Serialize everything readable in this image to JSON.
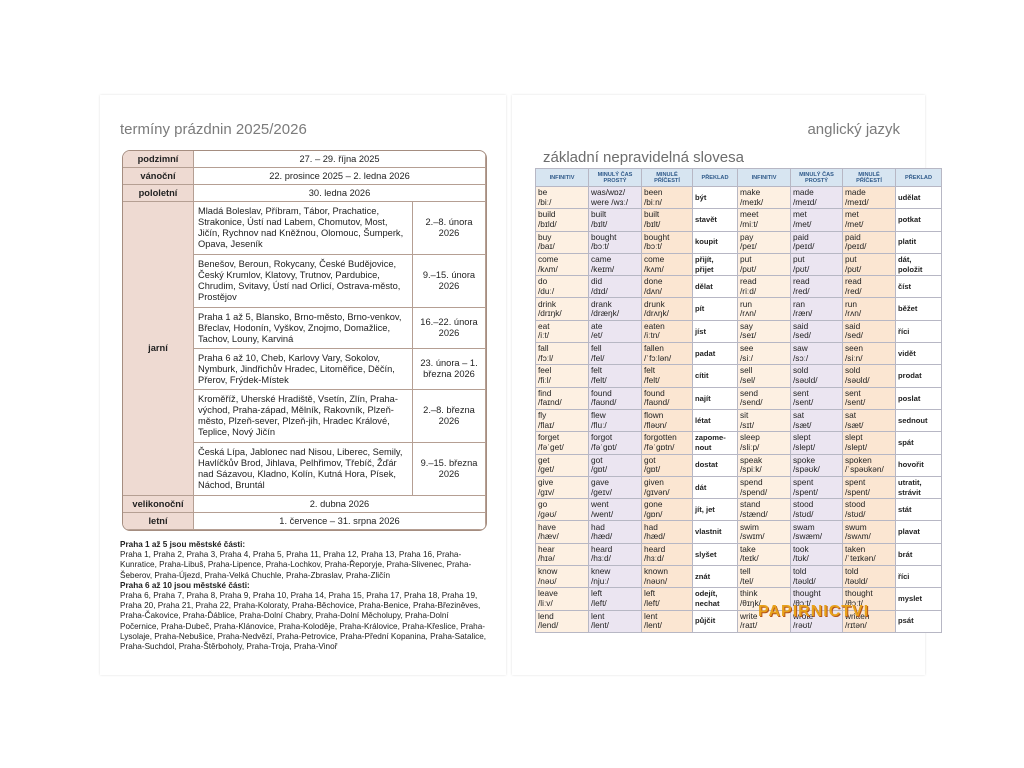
{
  "left_page": {
    "title": "termíny prázdnin 2025/2026",
    "table": {
      "rows": [
        {
          "season": "podzimní",
          "date": "27. – 29. října 2025"
        },
        {
          "season": "vánoční",
          "date": "22. prosince 2025 – 2. ledna 2026"
        },
        {
          "season": "pololetní",
          "date": "30. ledna 2026"
        },
        {
          "season": "jarní",
          "subrows": [
            {
              "regions": "Mladá Boleslav, Příbram, Tábor, Prachatice, Strakonice, Ústí nad Labem, Chomutov, Most, Jičín, Rychnov nad Kněžnou, Olomouc, Šumperk, Opava, Jeseník",
              "dates": "2.–8. února 2026"
            },
            {
              "regions": "Benešov, Beroun, Rokycany, České Budějovice, Český Krumlov, Klatovy, Trutnov, Pardubice, Chrudim, Svitavy, Ústí nad Orlicí, Ostrava-město, Prostějov",
              "dates": "9.–15. února 2026"
            },
            {
              "regions": "Praha 1 až 5, Blansko, Brno-město, Brno-venkov, Břeclav, Hodonín, Vyškov, Znojmo, Domažlice, Tachov, Louny, Karviná",
              "dates": "16.–22. února 2026"
            },
            {
              "regions": "Praha 6 až 10, Cheb, Karlovy Vary, Sokolov, Nymburk, Jindřichův Hradec, Litoměřice, Děčín, Přerov, Frýdek-Místek",
              "dates": "23. února – 1. března 2026"
            },
            {
              "regions": "Kroměříž, Uherské Hradiště, Vsetín, Zlín, Praha-východ, Praha-západ, Mělník, Rakovník, Plzeň-město, Plzeň-sever, Plzeň-jih, Hradec Králové, Teplice, Nový Jičín",
              "dates": "2.–8. března 2026"
            },
            {
              "regions": "Česká Lípa, Jablonec nad Nisou, Liberec, Semily, Havlíčkův Brod, Jihlava, Pelhřimov, Třebíč, Žďár nad Sázavou, Kladno, Kolín, Kutná Hora, Písek, Náchod, Bruntál",
              "dates": "9.–15. března 2026"
            }
          ]
        },
        {
          "season": "velikonoční",
          "date": "2. dubna 2026"
        },
        {
          "season": "letní",
          "date": "1. července – 31. srpna 2026"
        }
      ]
    },
    "notes": [
      {
        "heading": "Praha 1 až 5 jsou městské části:",
        "text": "Praha 1, Praha 2, Praha 3, Praha 4, Praha 5, Praha 11, Praha 12, Praha 13, Praha 16, Praha-Kunratice, Praha-Libuš, Praha-Lipence, Praha-Lochkov, Praha-Řeporyje, Praha-Slivenec, Praha-Šeberov, Praha-Újezd, Praha-Velká Chuchle, Praha-Zbraslav, Praha-Zličín"
      },
      {
        "heading": "Praha 6 až 10 jsou městské části:",
        "text": "Praha 6, Praha 7, Praha 8, Praha 9, Praha 10, Praha 14, Praha 15, Praha 17, Praha 18, Praha 19, Praha 20, Praha 21, Praha 22, Praha-Koloraty, Praha-Běchovice, Praha-Benice, Praha-Březiněves, Praha-Čakovice, Praha-Ďáblice, Praha-Dolní Chabry, Praha-Dolní Měcholupy, Praha-Dolní Počernice, Praha-Dubeč, Praha-Klánovice, Praha-Koloděje, Praha-Královice, Praha-Křeslice, Praha-Lysolaje, Praha-Nebušice, Praha-Nedvězí, Praha-Petrovice, Praha-Přední Kopanina, Praha-Satalice, Praha-Suchdol, Praha-Štěrboholy, Praha-Troja, Praha-Vinoř"
      }
    ]
  },
  "right_page": {
    "title": "anglický jazyk",
    "subtitle": "základní nepravidelná slovesa",
    "watermark": "PAPIRNICTVI",
    "table": {
      "headers": [
        "INFINITIV",
        "MINULÝ ČAS PROSTÝ",
        "MINULÉ PŘÍČESTÍ",
        "PŘEKLAD"
      ],
      "rows": [
        [
          [
            "be",
            "/biː/"
          ],
          [
            "was/wɒz/",
            "were /wɜː/"
          ],
          [
            "been",
            "/biːn/"
          ],
          [
            "být"
          ],
          [
            "make",
            "/meɪk/"
          ],
          [
            "made",
            "/meɪd/"
          ],
          [
            "made",
            "/meɪd/"
          ],
          [
            "udělat"
          ]
        ],
        [
          [
            "build",
            "/bɪld/"
          ],
          [
            "built",
            "/bɪlt/"
          ],
          [
            "built",
            "/bɪlt/"
          ],
          [
            "stavět"
          ],
          [
            "meet",
            "/miːt/"
          ],
          [
            "met",
            "/met/"
          ],
          [
            "met",
            "/met/"
          ],
          [
            "potkat"
          ]
        ],
        [
          [
            "buy",
            "/baɪ/"
          ],
          [
            "bought",
            "/bɔːt/"
          ],
          [
            "bought",
            "/bɔːt/"
          ],
          [
            "koupit"
          ],
          [
            "pay",
            "/peɪ/"
          ],
          [
            "paid",
            "/peɪd/"
          ],
          [
            "paid",
            "/peɪd/"
          ],
          [
            "platit"
          ]
        ],
        [
          [
            "come",
            "/kʌm/"
          ],
          [
            "came",
            "/keɪm/"
          ],
          [
            "come",
            "/kʌm/"
          ],
          [
            "přijít,",
            "přijet"
          ],
          [
            "put",
            "/pʊt/"
          ],
          [
            "put",
            "/pʊt/"
          ],
          [
            "put",
            "/pʊt/"
          ],
          [
            "dát,",
            "položit"
          ]
        ],
        [
          [
            "do",
            "/duː/"
          ],
          [
            "did",
            "/dɪd/"
          ],
          [
            "done",
            "/dʌn/"
          ],
          [
            "dělat"
          ],
          [
            "read",
            "/riːd/"
          ],
          [
            "read",
            "/red/"
          ],
          [
            "read",
            "/red/"
          ],
          [
            "číst"
          ]
        ],
        [
          [
            "drink",
            "/drɪŋk/"
          ],
          [
            "drank",
            "/dræŋk/"
          ],
          [
            "drunk",
            "/drʌŋk/"
          ],
          [
            "pít"
          ],
          [
            "run",
            "/rʌn/"
          ],
          [
            "ran",
            "/ræn/"
          ],
          [
            "run",
            "/rʌn/"
          ],
          [
            "běžet"
          ]
        ],
        [
          [
            "eat",
            "/iːt/"
          ],
          [
            "ate",
            "/et/"
          ],
          [
            "eaten",
            "/iːtn/"
          ],
          [
            "jíst"
          ],
          [
            "say",
            "/seɪ/"
          ],
          [
            "said",
            "/sed/"
          ],
          [
            "said",
            "/sed/"
          ],
          [
            "říci"
          ]
        ],
        [
          [
            "fall",
            "/fɔːl/"
          ],
          [
            "fell",
            "/fel/"
          ],
          [
            "fallen",
            "/ˈfɔːlən/"
          ],
          [
            "padat"
          ],
          [
            "see",
            "/siː/"
          ],
          [
            "saw",
            "/sɔː/"
          ],
          [
            "seen",
            "/siːn/"
          ],
          [
            "vidět"
          ]
        ],
        [
          [
            "feel",
            "/fiːl/"
          ],
          [
            "felt",
            "/felt/"
          ],
          [
            "felt",
            "/felt/"
          ],
          [
            "cítit"
          ],
          [
            "sell",
            "/sel/"
          ],
          [
            "sold",
            "/səʊld/"
          ],
          [
            "sold",
            "/səʊld/"
          ],
          [
            "prodat"
          ]
        ],
        [
          [
            "find",
            "/faɪnd/"
          ],
          [
            "found",
            "/faʊnd/"
          ],
          [
            "found",
            "/faʊnd/"
          ],
          [
            "najít"
          ],
          [
            "send",
            "/send/"
          ],
          [
            "sent",
            "/sent/"
          ],
          [
            "sent",
            "/sent/"
          ],
          [
            "poslat"
          ]
        ],
        [
          [
            "fly",
            "/flaɪ/"
          ],
          [
            "flew",
            "/fluː/"
          ],
          [
            "flown",
            "/fləʊn/"
          ],
          [
            "létat"
          ],
          [
            "sit",
            "/sɪt/"
          ],
          [
            "sat",
            "/sæt/"
          ],
          [
            "sat",
            "/sæt/"
          ],
          [
            "sednout"
          ]
        ],
        [
          [
            "forget",
            "/fəˈget/"
          ],
          [
            "forgot",
            "/fəˈgɒt/"
          ],
          [
            "forgotten",
            "/fəˈgɒtn/"
          ],
          [
            "zapome-",
            "nout"
          ],
          [
            "sleep",
            "/sliːp/"
          ],
          [
            "slept",
            "/slept/"
          ],
          [
            "slept",
            "/slept/"
          ],
          [
            "spát"
          ]
        ],
        [
          [
            "get",
            "/get/"
          ],
          [
            "got",
            "/gɒt/"
          ],
          [
            "got",
            "/gɒt/"
          ],
          [
            "dostat"
          ],
          [
            "speak",
            "/spiːk/"
          ],
          [
            "spoke",
            "/spəʊk/"
          ],
          [
            "spoken",
            "/ˈspəʊkən/"
          ],
          [
            "hovořit"
          ]
        ],
        [
          [
            "give",
            "/gɪv/"
          ],
          [
            "gave",
            "/geɪv/"
          ],
          [
            "given",
            "/gɪvən/"
          ],
          [
            "dát"
          ],
          [
            "spend",
            "/spend/"
          ],
          [
            "spent",
            "/spent/"
          ],
          [
            "spent",
            "/spent/"
          ],
          [
            "utratit,",
            "strávit"
          ]
        ],
        [
          [
            "go",
            "/gəʊ/"
          ],
          [
            "went",
            "/went/"
          ],
          [
            "gone",
            "/gɒn/"
          ],
          [
            "jít, jet"
          ],
          [
            "stand",
            "/stænd/"
          ],
          [
            "stood",
            "/stʊd/"
          ],
          [
            "stood",
            "/stʊd/"
          ],
          [
            "stát"
          ]
        ],
        [
          [
            "have",
            "/hæv/"
          ],
          [
            "had",
            "/hæd/"
          ],
          [
            "had",
            "/hæd/"
          ],
          [
            "vlastnit"
          ],
          [
            "swim",
            "/swɪm/"
          ],
          [
            "swam",
            "/swæm/"
          ],
          [
            "swum",
            "/swʌm/"
          ],
          [
            "plavat"
          ]
        ],
        [
          [
            "hear",
            "/hɪə/"
          ],
          [
            "heard",
            "/hɜːd/"
          ],
          [
            "heard",
            "/hɜːd/"
          ],
          [
            "slyšet"
          ],
          [
            "take",
            "/teɪk/"
          ],
          [
            "took",
            "/tʊk/"
          ],
          [
            "taken",
            "/ˈteɪkən/"
          ],
          [
            "brát"
          ]
        ],
        [
          [
            "know",
            "/nəʊ/"
          ],
          [
            "knew",
            "/njuː/"
          ],
          [
            "known",
            "/nəʊn/"
          ],
          [
            "znát"
          ],
          [
            "tell",
            "/tel/"
          ],
          [
            "told",
            "/təʊld/"
          ],
          [
            "told",
            "/təʊld/"
          ],
          [
            "říci"
          ]
        ],
        [
          [
            "leave",
            "/liːv/"
          ],
          [
            "left",
            "/left/"
          ],
          [
            "left",
            "/left/"
          ],
          [
            "odejít,",
            "nechat"
          ],
          [
            "think",
            "/θɪŋk/"
          ],
          [
            "thought",
            "/θɔːt/"
          ],
          [
            "thought",
            "/θɔːt/"
          ],
          [
            "myslet"
          ]
        ],
        [
          [
            "lend",
            "/lend/"
          ],
          [
            "lent",
            "/lent/"
          ],
          [
            "lent",
            "/lent/"
          ],
          [
            "půjčit"
          ],
          [
            "write",
            "/raɪt/"
          ],
          [
            "wrote",
            "/rəʊt/"
          ],
          [
            "written",
            "/rɪtən/"
          ],
          [
            "psát"
          ]
        ]
      ]
    }
  }
}
